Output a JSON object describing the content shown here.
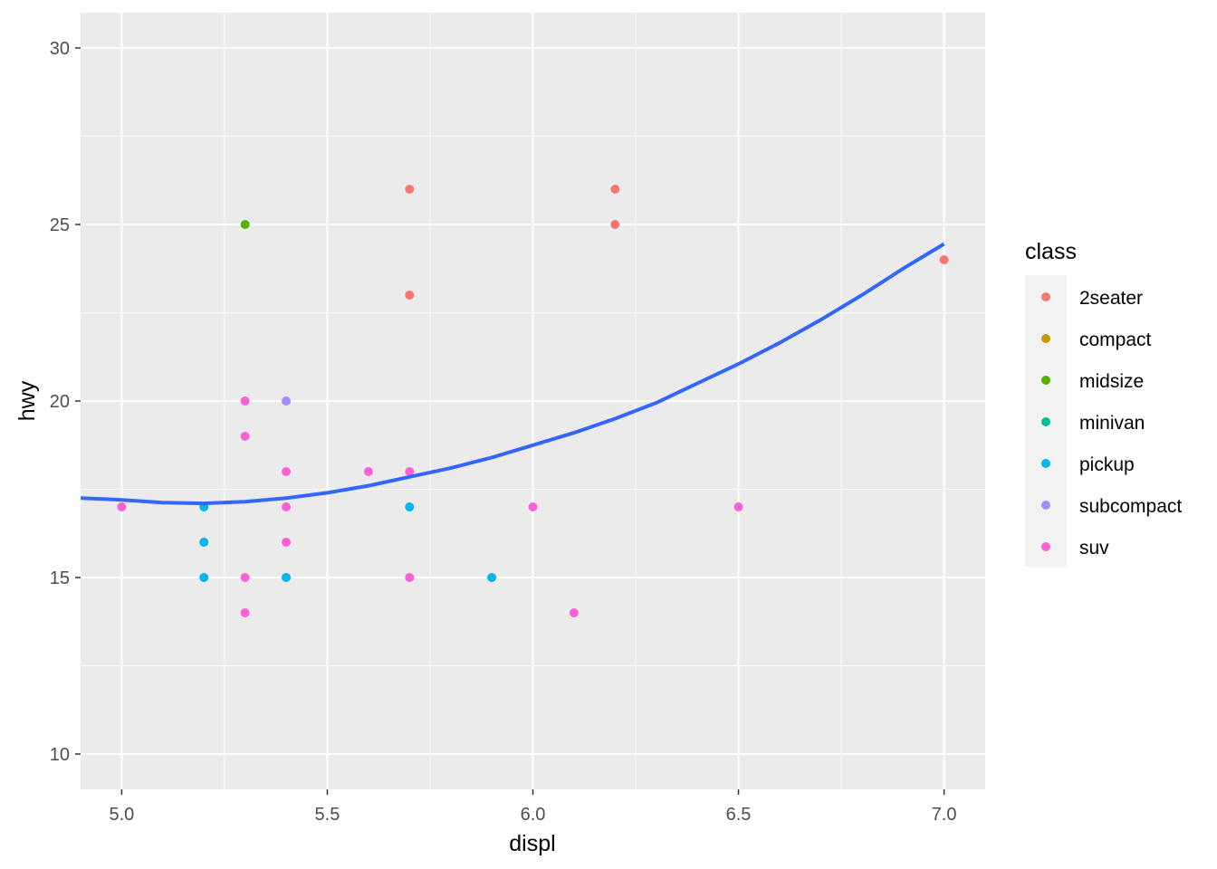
{
  "chart_data": {
    "type": "scatter",
    "xlabel": "displ",
    "ylabel": "hwy",
    "xlim": [
      4.9,
      7.1
    ],
    "ylim": [
      9,
      31
    ],
    "x_ticks": [
      {
        "value": 5.0,
        "label": "5.0"
      },
      {
        "value": 5.5,
        "label": "5.5"
      },
      {
        "value": 6.0,
        "label": "6.0"
      },
      {
        "value": 6.5,
        "label": "6.5"
      },
      {
        "value": 7.0,
        "label": "7.0"
      }
    ],
    "y_ticks": [
      {
        "value": 10,
        "label": "10"
      },
      {
        "value": 15,
        "label": "15"
      },
      {
        "value": 20,
        "label": "20"
      },
      {
        "value": 25,
        "label": "25"
      },
      {
        "value": 30,
        "label": "30"
      }
    ],
    "grid": true,
    "background": "#ebebeb",
    "legend": {
      "title": "class",
      "position": "right",
      "entries": [
        {
          "label": "2seater",
          "color": "#F8766D"
        },
        {
          "label": "compact",
          "color": "#C49A00"
        },
        {
          "label": "midsize",
          "color": "#53B400"
        },
        {
          "label": "minivan",
          "color": "#00C094"
        },
        {
          "label": "pickup",
          "color": "#00B6EB"
        },
        {
          "label": "subcompact",
          "color": "#A58AFF"
        },
        {
          "label": "suv",
          "color": "#FB61D7"
        }
      ]
    },
    "points": [
      {
        "x": 5.7,
        "y": 26,
        "class": "2seater"
      },
      {
        "x": 5.7,
        "y": 23,
        "class": "2seater"
      },
      {
        "x": 6.2,
        "y": 26,
        "class": "2seater"
      },
      {
        "x": 6.2,
        "y": 25,
        "class": "2seater"
      },
      {
        "x": 7.0,
        "y": 24,
        "class": "2seater"
      },
      {
        "x": 5.3,
        "y": 25,
        "class": "midsize"
      },
      {
        "x": 5.2,
        "y": 17,
        "class": "pickup"
      },
      {
        "x": 5.2,
        "y": 16,
        "class": "pickup"
      },
      {
        "x": 5.2,
        "y": 15,
        "class": "pickup"
      },
      {
        "x": 5.4,
        "y": 15,
        "class": "pickup"
      },
      {
        "x": 5.7,
        "y": 17,
        "class": "pickup"
      },
      {
        "x": 5.9,
        "y": 15,
        "class": "pickup"
      },
      {
        "x": 5.4,
        "y": 20,
        "class": "subcompact"
      },
      {
        "x": 5.0,
        "y": 17,
        "class": "suv"
      },
      {
        "x": 5.3,
        "y": 20,
        "class": "suv"
      },
      {
        "x": 5.3,
        "y": 19,
        "class": "suv"
      },
      {
        "x": 5.3,
        "y": 15,
        "class": "suv"
      },
      {
        "x": 5.3,
        "y": 14,
        "class": "suv"
      },
      {
        "x": 5.4,
        "y": 18,
        "class": "suv"
      },
      {
        "x": 5.4,
        "y": 17,
        "class": "suv"
      },
      {
        "x": 5.4,
        "y": 16,
        "class": "suv"
      },
      {
        "x": 5.6,
        "y": 18,
        "class": "suv"
      },
      {
        "x": 5.7,
        "y": 18,
        "class": "suv"
      },
      {
        "x": 5.7,
        "y": 15,
        "class": "suv"
      },
      {
        "x": 6.0,
        "y": 17,
        "class": "suv"
      },
      {
        "x": 6.1,
        "y": 14,
        "class": "suv"
      },
      {
        "x": 6.5,
        "y": 17,
        "class": "suv"
      }
    ],
    "smooth_line": {
      "color": "#3366FF",
      "x": [
        4.9,
        5.0,
        5.1,
        5.2,
        5.3,
        5.4,
        5.5,
        5.6,
        5.7,
        5.8,
        5.9,
        6.0,
        6.1,
        6.2,
        6.3,
        6.4,
        6.5,
        6.6,
        6.7,
        6.8,
        6.9,
        7.0
      ],
      "y": [
        17.25,
        17.2,
        17.12,
        17.1,
        17.15,
        17.25,
        17.4,
        17.6,
        17.85,
        18.1,
        18.4,
        18.75,
        19.1,
        19.5,
        19.95,
        20.5,
        21.05,
        21.65,
        22.3,
        23.0,
        23.75,
        24.45
      ]
    }
  }
}
